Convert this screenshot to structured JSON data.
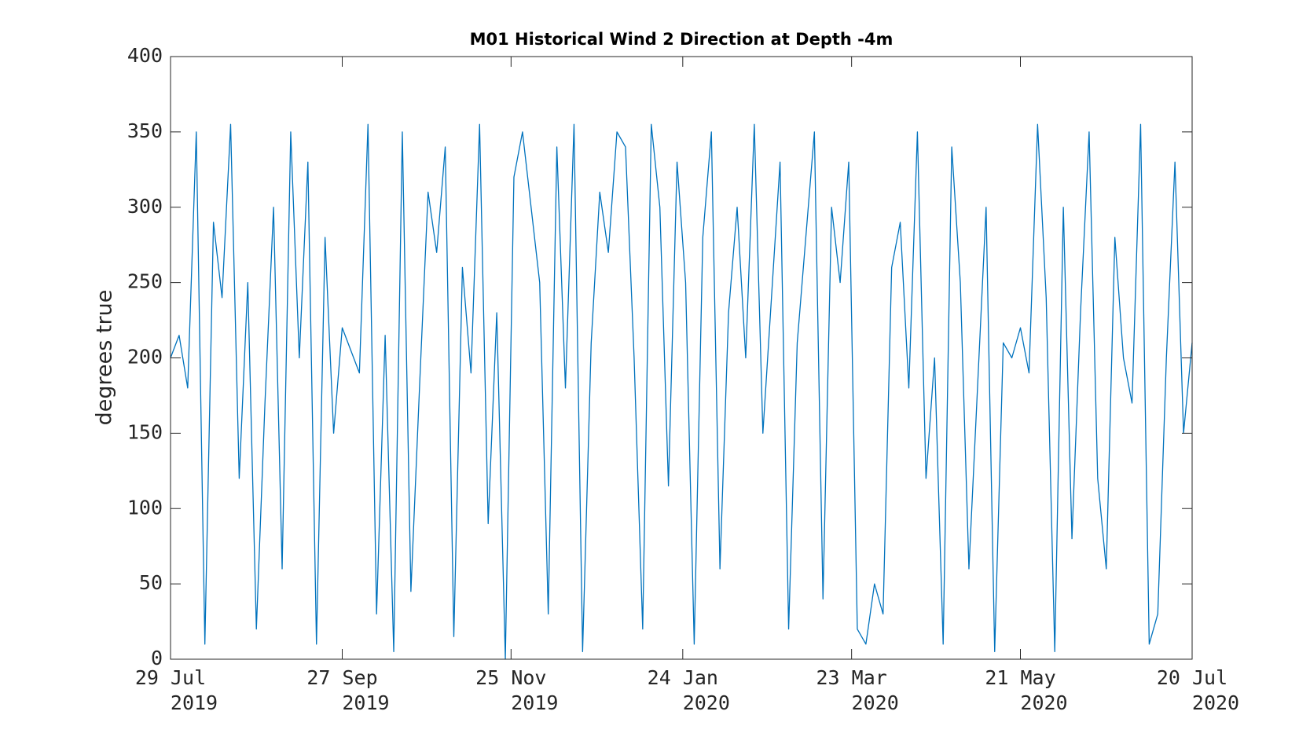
{
  "chart_data": {
    "type": "line",
    "title": "M01 Historical Wind 2 Direction at Depth -4m",
    "y_label": "degrees true",
    "color": "#0072bd",
    "xlim": [
      "2019-07-29",
      "2020-07-20"
    ],
    "xticks": [
      {
        "value": "2019-07-29",
        "label": [
          "29 Jul",
          "2019"
        ]
      },
      {
        "value": "2019-09-27",
        "label": [
          "27 Sep",
          "2019"
        ]
      },
      {
        "value": "2019-11-25",
        "label": [
          "25 Nov",
          "2019"
        ]
      },
      {
        "value": "2020-01-24",
        "label": [
          "24 Jan",
          "2020"
        ]
      },
      {
        "value": "2020-03-23",
        "label": [
          "23 Mar",
          "2020"
        ]
      },
      {
        "value": "2020-05-21",
        "label": [
          "21 May",
          "2020"
        ]
      },
      {
        "value": "2020-07-20",
        "label": [
          "20 Jul",
          "2020"
        ]
      }
    ],
    "ylim": [
      0,
      400
    ],
    "yticks": [
      0,
      50,
      100,
      150,
      200,
      250,
      300,
      350,
      400
    ],
    "x": [
      "2019-07-29",
      "2019-08-01",
      "2019-08-04",
      "2019-08-07",
      "2019-08-10",
      "2019-08-13",
      "2019-08-16",
      "2019-08-19",
      "2019-08-22",
      "2019-08-25",
      "2019-08-28",
      "2019-08-31",
      "2019-09-03",
      "2019-09-06",
      "2019-09-09",
      "2019-09-12",
      "2019-09-15",
      "2019-09-18",
      "2019-09-21",
      "2019-09-24",
      "2019-09-27",
      "2019-09-30",
      "2019-10-03",
      "2019-10-06",
      "2019-10-09",
      "2019-10-12",
      "2019-10-15",
      "2019-10-18",
      "2019-10-21",
      "2019-10-24",
      "2019-10-27",
      "2019-10-30",
      "2019-11-02",
      "2019-11-05",
      "2019-11-08",
      "2019-11-11",
      "2019-11-14",
      "2019-11-17",
      "2019-11-20",
      "2019-11-23",
      "2019-11-26",
      "2019-11-29",
      "2019-12-02",
      "2019-12-05",
      "2019-12-08",
      "2019-12-11",
      "2019-12-14",
      "2019-12-17",
      "2019-12-20",
      "2019-12-23",
      "2019-12-26",
      "2019-12-29",
      "2020-01-01",
      "2020-01-04",
      "2020-01-07",
      "2020-01-10",
      "2020-01-13",
      "2020-01-16",
      "2020-01-19",
      "2020-01-22",
      "2020-01-25",
      "2020-01-28",
      "2020-01-31",
      "2020-02-03",
      "2020-02-06",
      "2020-02-09",
      "2020-02-12",
      "2020-02-15",
      "2020-02-18",
      "2020-02-21",
      "2020-02-24",
      "2020-02-27",
      "2020-03-01",
      "2020-03-04",
      "2020-03-07",
      "2020-03-10",
      "2020-03-13",
      "2020-03-16",
      "2020-03-19",
      "2020-03-22",
      "2020-03-25",
      "2020-03-28",
      "2020-03-31",
      "2020-04-03",
      "2020-04-06",
      "2020-04-09",
      "2020-04-12",
      "2020-04-15",
      "2020-04-18",
      "2020-04-21",
      "2020-04-24",
      "2020-04-27",
      "2020-04-30",
      "2020-05-03",
      "2020-05-06",
      "2020-05-09",
      "2020-05-12",
      "2020-05-15",
      "2020-05-18",
      "2020-05-21",
      "2020-05-24",
      "2020-05-27",
      "2020-05-30",
      "2020-06-02",
      "2020-06-05",
      "2020-06-08",
      "2020-06-11",
      "2020-06-14",
      "2020-06-17",
      "2020-06-20",
      "2020-06-23",
      "2020-06-26",
      "2020-06-29",
      "2020-07-02",
      "2020-07-05",
      "2020-07-08",
      "2020-07-11",
      "2020-07-14",
      "2020-07-17",
      "2020-07-20"
    ],
    "values": [
      200,
      215,
      180,
      350,
      10,
      290,
      240,
      355,
      120,
      250,
      20,
      170,
      300,
      60,
      350,
      200,
      330,
      10,
      280,
      150,
      220,
      205,
      190,
      355,
      30,
      215,
      5,
      350,
      45,
      180,
      310,
      270,
      340,
      15,
      260,
      190,
      355,
      90,
      230,
      0,
      320,
      350,
      300,
      250,
      30,
      340,
      180,
      355,
      5,
      210,
      310,
      270,
      350,
      340,
      200,
      20,
      355,
      300,
      115,
      330,
      250,
      10,
      280,
      350,
      60,
      230,
      300,
      200,
      355,
      150,
      240,
      330,
      20,
      210,
      280,
      350,
      40,
      300,
      250,
      330,
      20,
      10,
      50,
      30,
      260,
      290,
      180,
      350,
      120,
      200,
      10,
      340,
      250,
      60,
      180,
      300,
      5,
      210,
      200,
      220,
      190,
      355,
      240,
      5,
      300,
      80,
      230,
      350,
      120,
      60,
      280,
      200,
      170,
      355,
      10,
      30,
      200,
      330,
      150,
      210
    ]
  }
}
